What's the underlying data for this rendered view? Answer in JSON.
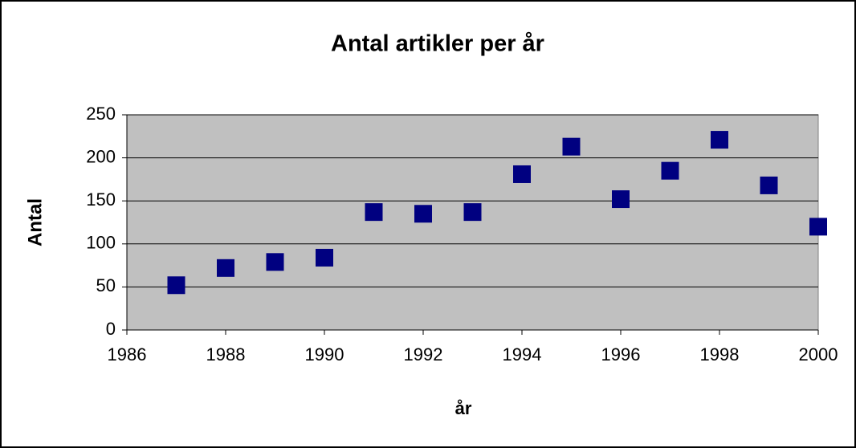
{
  "chart_data": {
    "type": "scatter",
    "title": "Antal artikler per år",
    "x_label": "år",
    "y_label": "Antal",
    "x": [
      1987,
      1988,
      1989,
      1990,
      1991,
      1992,
      1993,
      1994,
      1995,
      1996,
      1997,
      1998,
      1999,
      2000
    ],
    "values": [
      52,
      72,
      79,
      84,
      137,
      135,
      137,
      181,
      213,
      152,
      185,
      221,
      168,
      120
    ],
    "color": "#000080",
    "plot_background": "#c0c0c0",
    "xlim": [
      1986,
      2000
    ],
    "xticks": [
      1986,
      1988,
      1990,
      1992,
      1994,
      1996,
      1998,
      2000
    ],
    "ylim": [
      0,
      250
    ],
    "yticks": [
      0,
      50,
      100,
      150,
      200,
      250
    ],
    "grid": true
  }
}
